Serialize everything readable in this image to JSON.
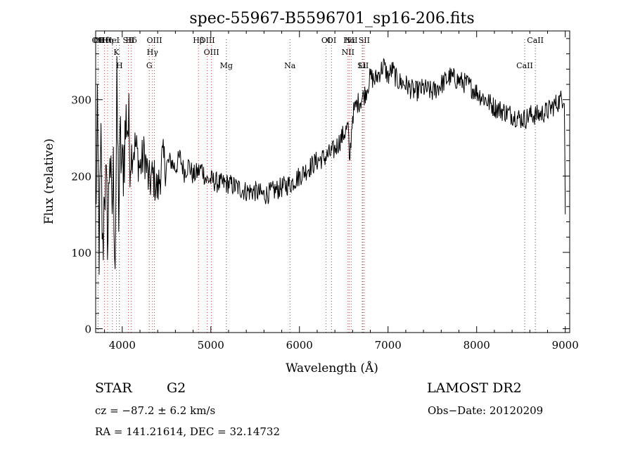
{
  "chart_data": {
    "type": "line",
    "title": "spec-55967-B5596701_sp16-206.fits",
    "xlabel": "Wavelength (Å)",
    "ylabel": "Flux (relative)",
    "xlim": [
      3700,
      9050
    ],
    "ylim": [
      -5,
      390
    ],
    "x_ticks": [
      4000,
      5000,
      6000,
      7000,
      8000,
      9000
    ],
    "y_ticks": [
      0,
      100,
      200,
      300
    ],
    "grid": false,
    "series": [
      {
        "x": [
          3700,
          3720,
          3740,
          3760,
          3780,
          3800,
          3820,
          3840,
          3860,
          3880,
          3900,
          3920,
          3940,
          3960,
          3980,
          4000,
          4050,
          4100,
          4150,
          4200,
          4250,
          4300,
          4350,
          4400,
          4450,
          4500,
          4550,
          4600,
          4650,
          4700,
          4750,
          4800,
          4850,
          4900,
          4950,
          5000,
          5100,
          5200,
          5300,
          5400,
          5500,
          5600,
          5700,
          5800,
          5900,
          6000,
          6100,
          6200,
          6300,
          6400,
          6500,
          6550,
          6563,
          6600,
          6650,
          6700,
          6750,
          6800,
          6850,
          6900,
          6950,
          7000,
          7050,
          7100,
          7200,
          7300,
          7400,
          7500,
          7600,
          7700,
          7800,
          7900,
          8000,
          8100,
          8200,
          8300,
          8400,
          8500,
          8550,
          8600,
          8700,
          8800,
          8900,
          8950,
          8990,
          9000
        ],
        "y": [
          150,
          260,
          110,
          230,
          90,
          200,
          170,
          120,
          250,
          140,
          200,
          100,
          300,
          160,
          240,
          200,
          280,
          230,
          240,
          210,
          230,
          190,
          200,
          180,
          220,
          215,
          220,
          210,
          225,
          205,
          215,
          200,
          205,
          210,
          195,
          195,
          190,
          190,
          185,
          180,
          180,
          175,
          180,
          185,
          190,
          200,
          210,
          220,
          225,
          235,
          255,
          265,
          215,
          280,
          295,
          300,
          310,
          330,
          325,
          335,
          345,
          330,
          340,
          325,
          320,
          310,
          315,
          310,
          320,
          330,
          325,
          320,
          310,
          300,
          290,
          285,
          280,
          275,
          275,
          280,
          280,
          285,
          295,
          300,
          305,
          150
        ]
      }
    ],
    "lines_red": [
      {
        "label": "Hθ",
        "x": 3798
      },
      {
        "label": "K",
        "x": 3934
      },
      {
        "label": "Hδ",
        "x": 4102
      },
      {
        "label": "OIII",
        "x": 4363
      },
      {
        "label": "Hγ",
        "x": 4341
      },
      {
        "label": "Hβ",
        "x": 4861
      },
      {
        "label": "OIII",
        "x": 5007
      },
      {
        "label": "OI",
        "x": 6300
      },
      {
        "label": "Hα",
        "x": 6563
      },
      {
        "label": "NII",
        "x": 6548
      },
      {
        "label": "SII",
        "x": 6717
      },
      {
        "label": "OI",
        "x": 3727
      },
      {
        "label": "HeI",
        "x": 3889
      },
      {
        "label": "SII",
        "x": 4070
      },
      {
        "label": "OII",
        "x": 3727
      },
      {
        "label": "Hη",
        "x": 3835
      },
      {
        "label": "OIII",
        "x": 4959
      },
      {
        "label": "OI",
        "x": 6363
      },
      {
        "label": "NII",
        "x": 6584
      },
      {
        "label": "SII",
        "x": 6731
      }
    ],
    "lines_black": [
      {
        "label": "H",
        "x": 3968
      },
      {
        "label": "G",
        "x": 4305
      },
      {
        "label": "Mg",
        "x": 5175
      },
      {
        "label": "Na",
        "x": 5893
      },
      {
        "label": "Li",
        "x": 6708
      },
      {
        "label": "CaII",
        "x": 8542
      },
      {
        "label": "CaII",
        "x": 8662
      }
    ]
  },
  "info": {
    "object_class": "STAR",
    "subclass": "G2",
    "survey": "LAMOST DR2",
    "redshift": "cz = −87.2 ± 6.2 km/s",
    "obs_date": "Obs−Date: 20120209",
    "coords": "RA = 141.21614, DEC =  32.14732"
  }
}
